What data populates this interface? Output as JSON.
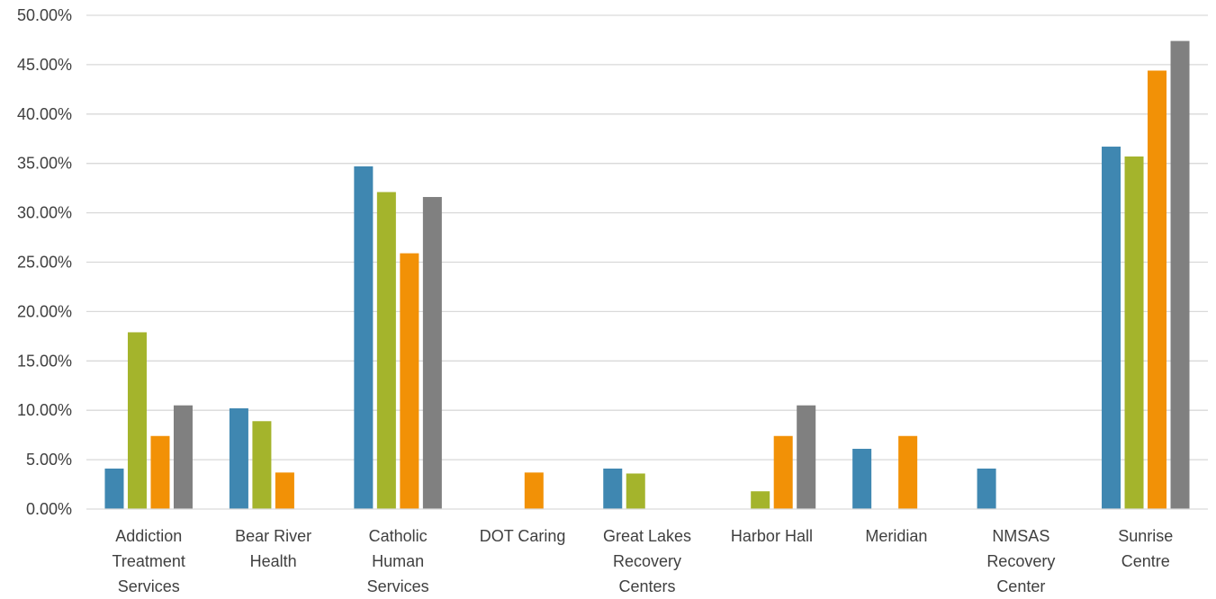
{
  "chart_data": {
    "type": "bar",
    "title": "",
    "xlabel": "",
    "ylabel": "",
    "ylim": [
      0,
      0.5
    ],
    "yticks": [
      0,
      0.05,
      0.1,
      0.15,
      0.2,
      0.25,
      0.3,
      0.35,
      0.4,
      0.45,
      0.5
    ],
    "ytick_labels": [
      "0.00%",
      "5.00%",
      "10.00%",
      "15.00%",
      "20.00%",
      "25.00%",
      "30.00%",
      "35.00%",
      "40.00%",
      "45.00%",
      "50.00%"
    ],
    "grid": true,
    "legend": "none",
    "categories": [
      [
        "Addiction",
        "Treatment",
        "Services"
      ],
      [
        "Bear River",
        "Health"
      ],
      [
        "Catholic",
        "Human",
        "Services"
      ],
      [
        "DOT Caring"
      ],
      [
        "Great Lakes",
        "Recovery",
        "Centers"
      ],
      [
        "Harbor Hall"
      ],
      [
        "Meridian"
      ],
      [
        "NMSAS",
        "Recovery",
        "Center"
      ],
      [
        "Sunrise",
        "Centre"
      ]
    ],
    "series": [
      {
        "color": "#3F87B1",
        "values": [
          0.041,
          0.102,
          0.347,
          0.0,
          0.041,
          0.0,
          0.061,
          0.041,
          0.367
        ]
      },
      {
        "color": "#A4B42C",
        "values": [
          0.179,
          0.089,
          0.321,
          0.0,
          0.036,
          0.018,
          0.0,
          0.0,
          0.357
        ]
      },
      {
        "color": "#F29106",
        "values": [
          0.074,
          0.037,
          0.259,
          0.037,
          0.0,
          0.074,
          0.074,
          0.0,
          0.444
        ]
      },
      {
        "color": "#808080",
        "values": [
          0.105,
          0.0,
          0.316,
          0.0,
          0.0,
          0.105,
          0.0,
          0.0,
          0.474
        ]
      }
    ]
  }
}
